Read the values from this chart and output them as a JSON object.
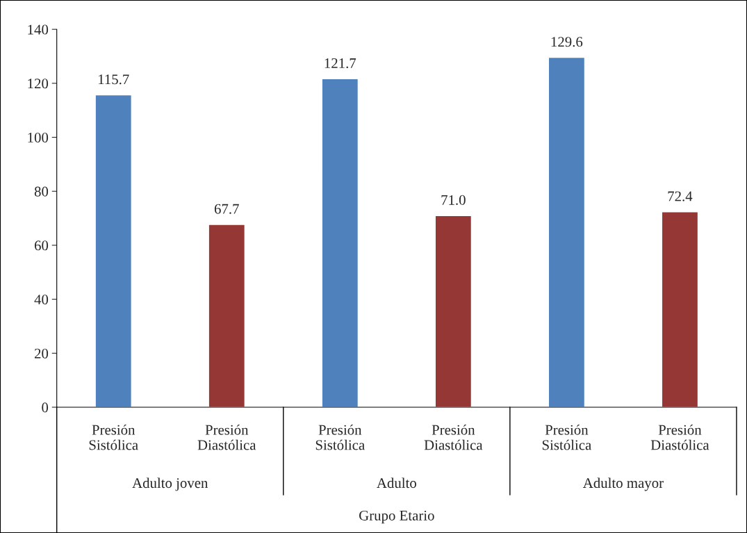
{
  "chart_data": {
    "type": "bar",
    "categories": [
      "Presión\nSistólica",
      "Presión\nDiastólica",
      "Presión\nSistólica",
      "Presión\nDiastólica",
      "Presión\nSistólica",
      "Presión\nDiastólica"
    ],
    "values": [
      115.7,
      67.7,
      121.7,
      71.0,
      129.6,
      72.4
    ],
    "colors": [
      "#4f81bd",
      "#953735",
      "#4f81bd",
      "#953735",
      "#4f81bd",
      "#953735"
    ],
    "xlabel": "Grupo Etario",
    "annotations": [
      "Adulto joven",
      "Adulto",
      "Adulto mayor"
    ],
    "ylim": [
      0,
      140
    ],
    "yticks": [
      0,
      20,
      40,
      60,
      80,
      100,
      120,
      140
    ],
    "value_labels": [
      "115.7",
      "67.7",
      "121.7",
      "71.0",
      "129.6",
      "72.4"
    ],
    "grid": false,
    "legend": false
  }
}
